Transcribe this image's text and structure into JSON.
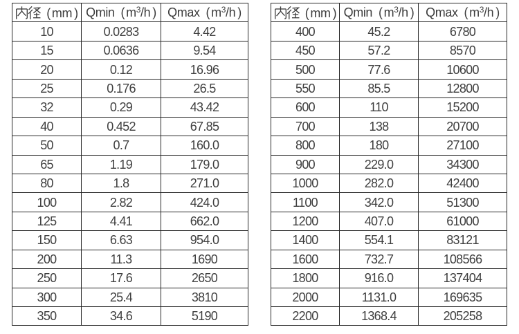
{
  "style": {
    "background": "#ffffff",
    "border_color": "#262626",
    "text_color": "#3f3f3f"
  },
  "tables": [
    {
      "name": "small-diameter-flow-table",
      "columns": [
        "内径（mm）",
        "Qmin（m³/h）",
        "Qmax（m³/h）"
      ],
      "rows": [
        [
          "10",
          "0.0283",
          "4.42"
        ],
        [
          "15",
          "0.0636",
          "9.54"
        ],
        [
          "20",
          "0.12",
          "16.96"
        ],
        [
          "25",
          "0.176",
          "26.5"
        ],
        [
          "32",
          "0.29",
          "43.42"
        ],
        [
          "40",
          "0.452",
          "67.85"
        ],
        [
          "50",
          "0.7",
          "160.0"
        ],
        [
          "65",
          "1.19",
          "179.0"
        ],
        [
          "80",
          "1.8",
          "271.0"
        ],
        [
          "100",
          "2.82",
          "424.0"
        ],
        [
          "125",
          "4.41",
          "662.0"
        ],
        [
          "150",
          "6.63",
          "954.0"
        ],
        [
          "200",
          "11.3",
          "1690"
        ],
        [
          "250",
          "17.6",
          "2650"
        ],
        [
          "300",
          "25.4",
          "3810"
        ],
        [
          "350",
          "34.6",
          "5190"
        ]
      ]
    },
    {
      "name": "large-diameter-flow-table",
      "columns": [
        "内径（mm）",
        "Qmin（m³/h）",
        "Qmax（m³/h）"
      ],
      "rows": [
        [
          "400",
          "45.2",
          "6780"
        ],
        [
          "450",
          "57.2",
          "8570"
        ],
        [
          "500",
          "77.6",
          "10600"
        ],
        [
          "550",
          "85.5",
          "12800"
        ],
        [
          "600",
          "110",
          "15200"
        ],
        [
          "700",
          "138",
          "20700"
        ],
        [
          "800",
          "180",
          "27100"
        ],
        [
          "900",
          "229.0",
          "34300"
        ],
        [
          "1000",
          "282.0",
          "42400"
        ],
        [
          "1100",
          "342.0",
          "51300"
        ],
        [
          "1200",
          "407.0",
          "61000"
        ],
        [
          "1400",
          "554.1",
          "83121"
        ],
        [
          "1600",
          "732.7",
          "108566"
        ],
        [
          "1800",
          "916.0",
          "137404"
        ],
        [
          "2000",
          "1131.0",
          "169635"
        ],
        [
          "2200",
          "1368.4",
          "205258"
        ]
      ]
    }
  ]
}
